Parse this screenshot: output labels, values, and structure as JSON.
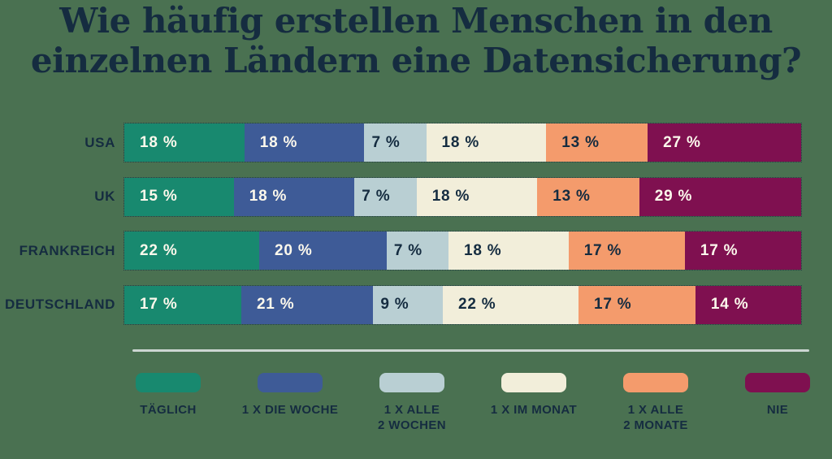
{
  "title": "Wie häufig erstellen Menschen in den einzelnen Ländern eine Datensicherung?",
  "title_lines": [
    "Wie häufig erstellen Menschen in den",
    "einzelnen Ländern eine Datensicherung?"
  ],
  "colors": {
    "background": "#4a7151",
    "heading_text": "#152c40",
    "light_label_text": "#fcf8ec",
    "dark_label_text": "#152c40",
    "divider": "#ccd6d2"
  },
  "chart_data": {
    "type": "bar",
    "orientation": "horizontal-stacked",
    "title": "Wie häufig erstellen Menschen in den einzelnen Ländern eine Datensicherung?",
    "categories": [
      "USA",
      "UK",
      "FRANKREICH",
      "DEUTSCHLAND"
    ],
    "value_suffix": " %",
    "unit": "percent",
    "legend_position": "bottom",
    "series": [
      {
        "name": "TÄGLICH",
        "color": "#18896f",
        "label_color": "#fcf8ec",
        "values": [
          18,
          15,
          22,
          17
        ]
      },
      {
        "name": "1 X DIE WOCHE",
        "color": "#3e5b97",
        "label_color": "#fcf8ec",
        "values": [
          18,
          18,
          20,
          21
        ]
      },
      {
        "name": "1 X ALLE\n2 WOCHEN",
        "color": "#b9cfd3",
        "label_color": "#152c40",
        "values": [
          7,
          7,
          7,
          9
        ]
      },
      {
        "name": "1 X IM MONAT",
        "color": "#f2eeda",
        "label_color": "#152c40",
        "values": [
          18,
          18,
          18,
          22
        ]
      },
      {
        "name": "1 X ALLE\n2 MONATE",
        "color": "#f49b6c",
        "label_color": "#152c40",
        "values": [
          13,
          13,
          17,
          17
        ]
      },
      {
        "name": "NIE",
        "color": "#7f1050",
        "label_color": "#fcf8ec",
        "values": [
          27,
          29,
          17,
          14
        ]
      }
    ]
  }
}
